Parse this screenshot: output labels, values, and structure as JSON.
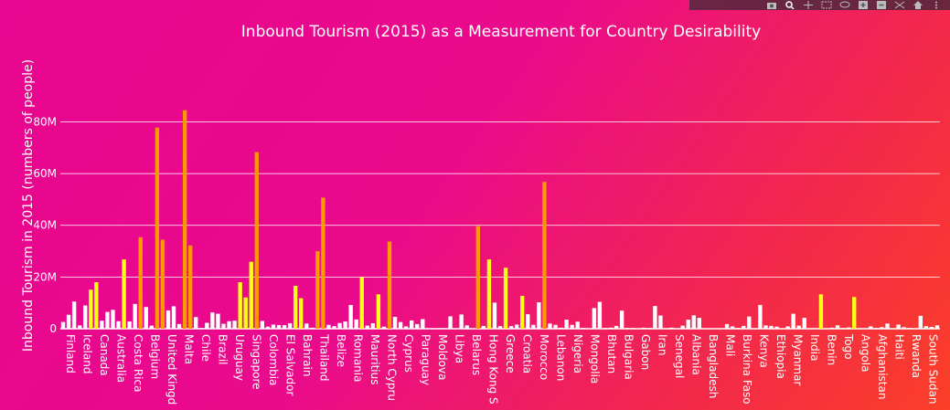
{
  "modebar": {
    "icons": [
      "camera-icon",
      "zoom-icon",
      "pan-icon",
      "box-select-icon",
      "lasso-icon",
      "zoom-in-icon",
      "zoom-out-icon",
      "autoscale-icon",
      "home-icon",
      "more-icon"
    ]
  },
  "colors": {
    "normal": "#ffffff",
    "mid": "#ffff1a",
    "high": "#ff9900",
    "grid": "#ffffff"
  },
  "chart_data": {
    "type": "bar",
    "title": "Inbound Tourism (2015) as a Measurement for Country Desirability",
    "xlabel": "",
    "ylabel": "Inbound Tourism in 2015 (numbers of people)",
    "ylim": [
      0,
      95000000
    ],
    "yticks": [
      0,
      20000000,
      40000000,
      60000000,
      80000000
    ],
    "ytick_labels": [
      "0",
      "20M",
      "40M",
      "60M",
      "80M"
    ],
    "grid": true,
    "x_tick_labels": [
      "Finland",
      "Iceland",
      "Canada",
      "Australia",
      "Costa Rica",
      "Belgium",
      "United Kingd",
      "Malta",
      "Chile",
      "Brazil",
      "Uruguay",
      "Singapore",
      "Colombia",
      "El Salvador",
      "Bahrain",
      "Thailand",
      "Belize",
      "Romania",
      "Mauritius",
      "North Cypru",
      "Cyprus",
      "Paraguay",
      "Moldova",
      "Libya",
      "Belarus",
      "Hong Kong S",
      "Greece",
      "Croatia",
      "Morocco",
      "Lebanon",
      "Nigeria",
      "Mongolia",
      "Bhutan",
      "Bulgaria",
      "Gabon",
      "Iran",
      "Senegal",
      "Albania",
      "Bangladesh",
      "Mali",
      "Burkina Faso",
      "Kenya",
      "Ethiopia",
      "Myanmar",
      "India",
      "Benin",
      "Togo",
      "Angola",
      "Afghanistan",
      "Haiti",
      "Rwanda",
      "South Sudan"
    ],
    "values": [
      2600000,
      5400000,
      10500000,
      1300000,
      9000000,
      15100000,
      18000000,
      3100000,
      6500000,
      7300000,
      2900000,
      26800000,
      2800000,
      9600000,
      35400000,
      8400000,
      1200000,
      77800000,
      34400000,
      7100000,
      8700000,
      1800000,
      84500000,
      32200000,
      4500000,
      300000,
      2300000,
      6300000,
      5800000,
      1900000,
      2900000,
      3100000,
      18000000,
      12100000,
      25900000,
      68300000,
      3000000,
      800000,
      1600000,
      1400000,
      1400000,
      2100000,
      16600000,
      11800000,
      2000000,
      400000,
      30000000,
      50700000,
      1500000,
      1000000,
      2200000,
      2800000,
      9200000,
      3600000,
      19900000,
      1200000,
      2100000,
      13300000,
      800000,
      33700000,
      4600000,
      2600000,
      900000,
      3200000,
      1800000,
      3700000,
      100000,
      100000,
      200000,
      200000,
      4800000,
      100000,
      5500000,
      1300000,
      200000,
      39700000,
      1100000,
      26800000,
      10100000,
      1000000,
      23600000,
      1000000,
      1600000,
      12700000,
      5600000,
      1500000,
      10200000,
      56800000,
      2000000,
      1500000,
      400000,
      3500000,
      1500000,
      2700000,
      300000,
      100000,
      8000000,
      10400000,
      300000,
      400000,
      1100000,
      7000000,
      300000,
      300000,
      100000,
      400000,
      300000,
      8800000,
      5100000,
      100000,
      400000,
      200000,
      1200000,
      3500000,
      5200000,
      4200000,
      100000,
      100000,
      100000,
      100000,
      1800000,
      900000,
      300000,
      1100000,
      4700000,
      100000,
      9200000,
      1300000,
      1100000,
      800000,
      100000,
      900000,
      5800000,
      1200000,
      4200000,
      100000,
      100000,
      13300000,
      100000,
      400000,
      1300000,
      300000,
      500000,
      12300000,
      100000,
      100000,
      900000,
      300000,
      600000,
      2000000,
      100000,
      1600000,
      600000,
      300000,
      100000,
      5000000,
      1000000,
      700000,
      1300000
    ],
    "color_rule": "white below 11.5M, yellow 11.5M to 30M, orange above 30M"
  }
}
